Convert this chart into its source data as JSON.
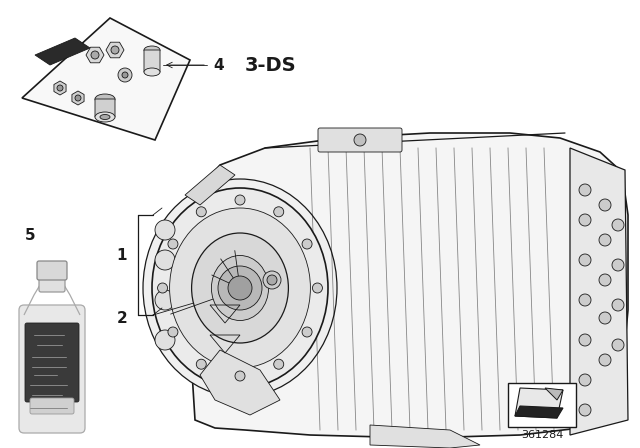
{
  "background_color": "#ffffff",
  "fig_width": 6.4,
  "fig_height": 4.48,
  "dpi": 100,
  "label_4": "4",
  "label_3ds": "3-DS",
  "label_1": "1",
  "label_2": "2",
  "label_5": "5",
  "part_number": "361284",
  "lc": "#1a1a1a",
  "lw_main": 1.2,
  "lw_thin": 0.6,
  "lw_med": 0.9,
  "font_size_label": 11,
  "font_size_partnum": 8,
  "font_size_3ds": 14,
  "trans_fill": "#f4f4f4",
  "bell_fill": "#ececec",
  "dark_fill": "#555555",
  "mid_fill": "#bbbbbb",
  "light_fill": "#e0e0e0"
}
